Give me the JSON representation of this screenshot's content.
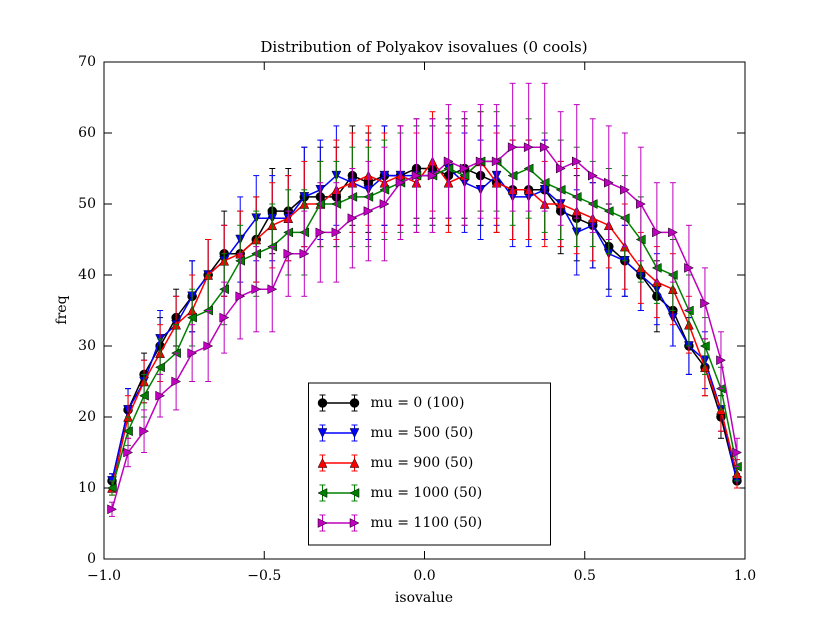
{
  "chart_data": {
    "type": "errorbar-line",
    "title": "Distribution of Polyakov isovalues (0 cools)",
    "xlabel": "isovalue",
    "ylabel": "freq",
    "x": [
      -0.975,
      -0.925,
      -0.875,
      -0.825,
      -0.775,
      -0.725,
      -0.675,
      -0.625,
      -0.575,
      -0.525,
      -0.475,
      -0.425,
      -0.375,
      -0.325,
      -0.275,
      -0.225,
      -0.175,
      -0.125,
      -0.075,
      -0.025,
      0.025,
      0.075,
      0.125,
      0.175,
      0.225,
      0.275,
      0.325,
      0.375,
      0.425,
      0.475,
      0.525,
      0.575,
      0.625,
      0.675,
      0.725,
      0.775,
      0.825,
      0.875,
      0.925,
      0.975
    ],
    "xlim": [
      -1.0,
      1.0
    ],
    "xticks": [
      {
        "value": -1.0,
        "label": "−1.0"
      },
      {
        "value": -0.5,
        "label": "−0.5"
      },
      {
        "value": 0.0,
        "label": "0.0"
      },
      {
        "value": 0.5,
        "label": "0.5"
      },
      {
        "value": 1.0,
        "label": "1.0"
      }
    ],
    "ylim": [
      0,
      70
    ],
    "yticks": [
      0,
      10,
      20,
      30,
      40,
      50,
      60,
      70
    ],
    "legend": "lower center",
    "series": [
      {
        "name": "mu = 0 (100)",
        "color": "#000000",
        "marker": "circle",
        "values": [
          11,
          21,
          26,
          30,
          34,
          37,
          40,
          43,
          43,
          45,
          49,
          49,
          51,
          51,
          51,
          54,
          53,
          54,
          54,
          55,
          55,
          54,
          55,
          54,
          53,
          52,
          52,
          52,
          49,
          48,
          47,
          44,
          42,
          40,
          37,
          35,
          30,
          27,
          20,
          11
        ],
        "errors": [
          1,
          3,
          3,
          4,
          4,
          5,
          5,
          6,
          6,
          6,
          6,
          6,
          7,
          7,
          7,
          7,
          7,
          7,
          7,
          7,
          7,
          7,
          7,
          7,
          7,
          7,
          7,
          7,
          6,
          6,
          6,
          6,
          5,
          5,
          5,
          5,
          4,
          4,
          3,
          1
        ]
      },
      {
        "name": "mu = 500 (50)",
        "color": "#0000ff",
        "marker": "triangle-down",
        "values": [
          11,
          21,
          25,
          31,
          33,
          37,
          40,
          42,
          45,
          48,
          48,
          48,
          51,
          52,
          54,
          53,
          52,
          54,
          54,
          54,
          54,
          55,
          53,
          52,
          54,
          51,
          51,
          52,
          50,
          46,
          47,
          43,
          42,
          40,
          38,
          34,
          30,
          28,
          21,
          11
        ],
        "errors": [
          1,
          3,
          3,
          4,
          4,
          5,
          5,
          5,
          6,
          6,
          6,
          6,
          7,
          7,
          7,
          7,
          7,
          7,
          7,
          7,
          7,
          7,
          7,
          7,
          7,
          7,
          7,
          7,
          6,
          6,
          6,
          6,
          5,
          5,
          5,
          4,
          4,
          4,
          3,
          1
        ]
      },
      {
        "name": "mu = 900 (50)",
        "color": "#ff0000",
        "marker": "triangle-up",
        "values": [
          10,
          20,
          25,
          29,
          33,
          35,
          40,
          42,
          43,
          45,
          47,
          48,
          50,
          50,
          52,
          53,
          54,
          53,
          54,
          53,
          56,
          53,
          54,
          56,
          53,
          52,
          52,
          50,
          50,
          49,
          48,
          47,
          44,
          41,
          39,
          38,
          33,
          27,
          21,
          12
        ],
        "errors": [
          1,
          3,
          3,
          4,
          4,
          5,
          5,
          5,
          6,
          6,
          6,
          6,
          6,
          6,
          7,
          7,
          7,
          7,
          7,
          7,
          7,
          7,
          7,
          7,
          7,
          7,
          7,
          6,
          6,
          6,
          6,
          6,
          6,
          5,
          5,
          5,
          4,
          4,
          3,
          2
        ]
      },
      {
        "name": "mu = 1000 (50)",
        "color": "#008000",
        "marker": "triangle-left",
        "values": [
          10,
          18,
          23,
          27,
          29,
          34,
          35,
          38,
          42,
          43,
          44,
          46,
          46,
          50,
          50,
          51,
          51,
          52,
          53,
          54,
          54,
          55,
          54,
          56,
          56,
          54,
          55,
          53,
          52,
          51,
          50,
          49,
          48,
          45,
          41,
          40,
          35,
          30,
          24,
          13
        ],
        "errors": [
          1,
          2,
          3,
          4,
          4,
          4,
          5,
          5,
          5,
          6,
          6,
          6,
          6,
          6,
          6,
          7,
          7,
          7,
          7,
          7,
          7,
          7,
          7,
          7,
          7,
          7,
          7,
          7,
          7,
          7,
          6,
          6,
          6,
          6,
          5,
          5,
          5,
          4,
          3,
          2
        ]
      },
      {
        "name": "mu = 1100 (50)",
        "color": "#bf00bf",
        "marker": "triangle-right",
        "values": [
          7,
          15,
          18,
          23,
          25,
          29,
          30,
          34,
          37,
          38,
          38,
          43,
          43,
          46,
          46,
          48,
          49,
          50,
          53,
          54,
          54,
          56,
          55,
          56,
          56,
          58,
          58,
          58,
          55,
          56,
          54,
          53,
          52,
          50,
          46,
          46,
          41,
          36,
          28,
          15
        ],
        "errors": [
          1,
          2,
          3,
          3,
          4,
          4,
          5,
          5,
          6,
          6,
          6,
          6,
          6,
          7,
          7,
          7,
          7,
          8,
          8,
          8,
          8,
          8,
          8,
          8,
          8,
          9,
          9,
          9,
          8,
          8,
          8,
          8,
          8,
          8,
          7,
          7,
          6,
          5,
          4,
          2
        ]
      }
    ]
  }
}
